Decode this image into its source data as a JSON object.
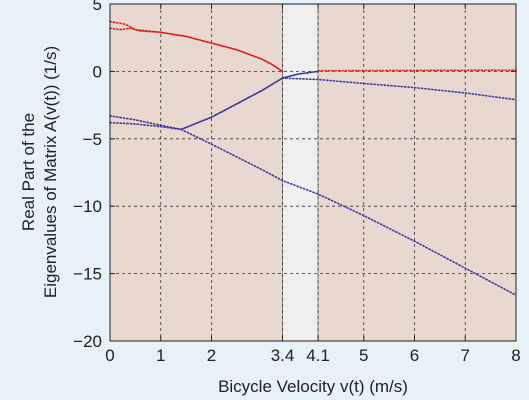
{
  "chart_data": {
    "type": "line",
    "title": "",
    "xlabel": "Bicycle Velocity v(t) (m/s)",
    "ylabel_line1": "Real Part of the",
    "ylabel_line2": "Eigenvalues of Matrix A(v(t)) (1/s)",
    "xlim": [
      0,
      8
    ],
    "ylim": [
      -20,
      5
    ],
    "x_ticks": [
      0,
      1,
      2,
      3.4,
      4.1,
      5,
      6,
      7,
      8
    ],
    "y_ticks": [
      5,
      0,
      -5,
      -10,
      -15,
      -20
    ],
    "grid": true,
    "shaded_band": [
      3.4,
      4.1
    ],
    "series": [
      {
        "color": "#e0201a",
        "points": [
          [
            0,
            3.7
          ],
          [
            0.3,
            3.5
          ],
          [
            0.5,
            3.1
          ],
          [
            1.0,
            2.9
          ],
          [
            1.5,
            2.6
          ],
          [
            2.0,
            2.1
          ],
          [
            2.5,
            1.6
          ],
          [
            3.0,
            0.9
          ],
          [
            3.2,
            0.5
          ],
          [
            3.4,
            0.0
          ]
        ]
      },
      {
        "color": "#e0201a",
        "points": [
          [
            0,
            3.2
          ],
          [
            0.2,
            3.1
          ],
          [
            0.4,
            3.2
          ],
          [
            0.6,
            3.0
          ],
          [
            1.0,
            2.9
          ],
          [
            1.5,
            2.6
          ],
          [
            2.0,
            2.1
          ],
          [
            2.5,
            1.6
          ],
          [
            3.0,
            0.9
          ],
          [
            3.2,
            0.5
          ],
          [
            3.4,
            0.0
          ]
        ]
      },
      {
        "color": "#e0201a",
        "points": [
          [
            4.1,
            0.05
          ],
          [
            8,
            0.1
          ]
        ]
      },
      {
        "color": "#3b3b9a",
        "points": [
          [
            0,
            -3.3
          ],
          [
            0.5,
            -3.6
          ],
          [
            1.0,
            -4.0
          ],
          [
            1.4,
            -4.3
          ],
          [
            2.0,
            -3.4
          ],
          [
            2.5,
            -2.4
          ],
          [
            3.0,
            -1.4
          ],
          [
            3.4,
            -0.5
          ],
          [
            3.7,
            -0.2
          ],
          [
            4.1,
            0.0
          ]
        ]
      },
      {
        "color": "#3b3b9a",
        "points": [
          [
            0,
            -3.8
          ],
          [
            0.5,
            -3.9
          ],
          [
            1.0,
            -4.1
          ],
          [
            1.4,
            -4.3
          ],
          [
            2.0,
            -3.4
          ],
          [
            2.5,
            -2.4
          ],
          [
            3.0,
            -1.4
          ],
          [
            3.4,
            -0.5
          ],
          [
            3.7,
            -0.2
          ],
          [
            4.1,
            0.0
          ]
        ]
      },
      {
        "color": "#3b3b9a",
        "points": [
          [
            3.4,
            -0.5
          ],
          [
            4.1,
            -0.6
          ],
          [
            5,
            -0.9
          ],
          [
            6,
            -1.2
          ],
          [
            7,
            -1.6
          ],
          [
            8,
            -2.1
          ]
        ]
      },
      {
        "color": "#3b3b9a",
        "points": [
          [
            1.4,
            -4.3
          ],
          [
            2,
            -5.4
          ],
          [
            3,
            -7.3
          ],
          [
            3.4,
            -8.1
          ],
          [
            4.1,
            -9.1
          ],
          [
            5,
            -10.7
          ],
          [
            6,
            -12.6
          ],
          [
            7,
            -14.6
          ],
          [
            8,
            -16.6
          ]
        ]
      }
    ]
  },
  "colors": {
    "plot_bg": "#e8d8d0",
    "page_bg": "#e6f1f8",
    "band": "#efefef"
  }
}
